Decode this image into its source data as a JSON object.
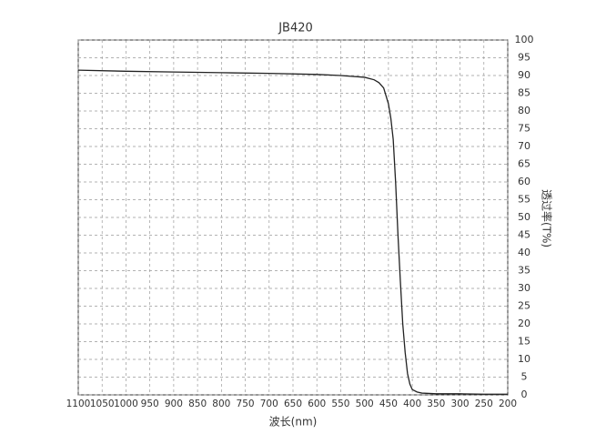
{
  "chart_data": {
    "type": "line",
    "title": "JB420",
    "x_label": "波长(nm)",
    "y_label": "透过率(T%)",
    "x": [
      1100,
      1000,
      900,
      800,
      700,
      600,
      550,
      500,
      480,
      470,
      460,
      450,
      445,
      440,
      435,
      430,
      425,
      420,
      415,
      410,
      405,
      400,
      390,
      380,
      350,
      300,
      250,
      200
    ],
    "series": [
      {
        "name": "JB420",
        "color": "#222222",
        "values": [
          91.5,
          91.2,
          91.0,
          90.8,
          90.6,
          90.3,
          90.0,
          89.5,
          88.8,
          88.0,
          86.5,
          82,
          78,
          72,
          60,
          45,
          32,
          20,
          12,
          6,
          3,
          1.5,
          0.8,
          0.5,
          0.3,
          0.3,
          0.2,
          0.2
        ]
      }
    ],
    "xlim": [
      1100,
      200
    ],
    "xticks": [
      1100,
      1050,
      1000,
      950,
      900,
      850,
      800,
      750,
      700,
      650,
      600,
      550,
      500,
      450,
      400,
      350,
      300,
      250,
      200
    ],
    "ylim": [
      0,
      100
    ],
    "yticks": [
      0,
      5,
      10,
      15,
      20,
      25,
      30,
      35,
      40,
      45,
      50,
      55,
      60,
      65,
      70,
      75,
      80,
      85,
      90,
      95,
      100
    ],
    "grid": true
  }
}
